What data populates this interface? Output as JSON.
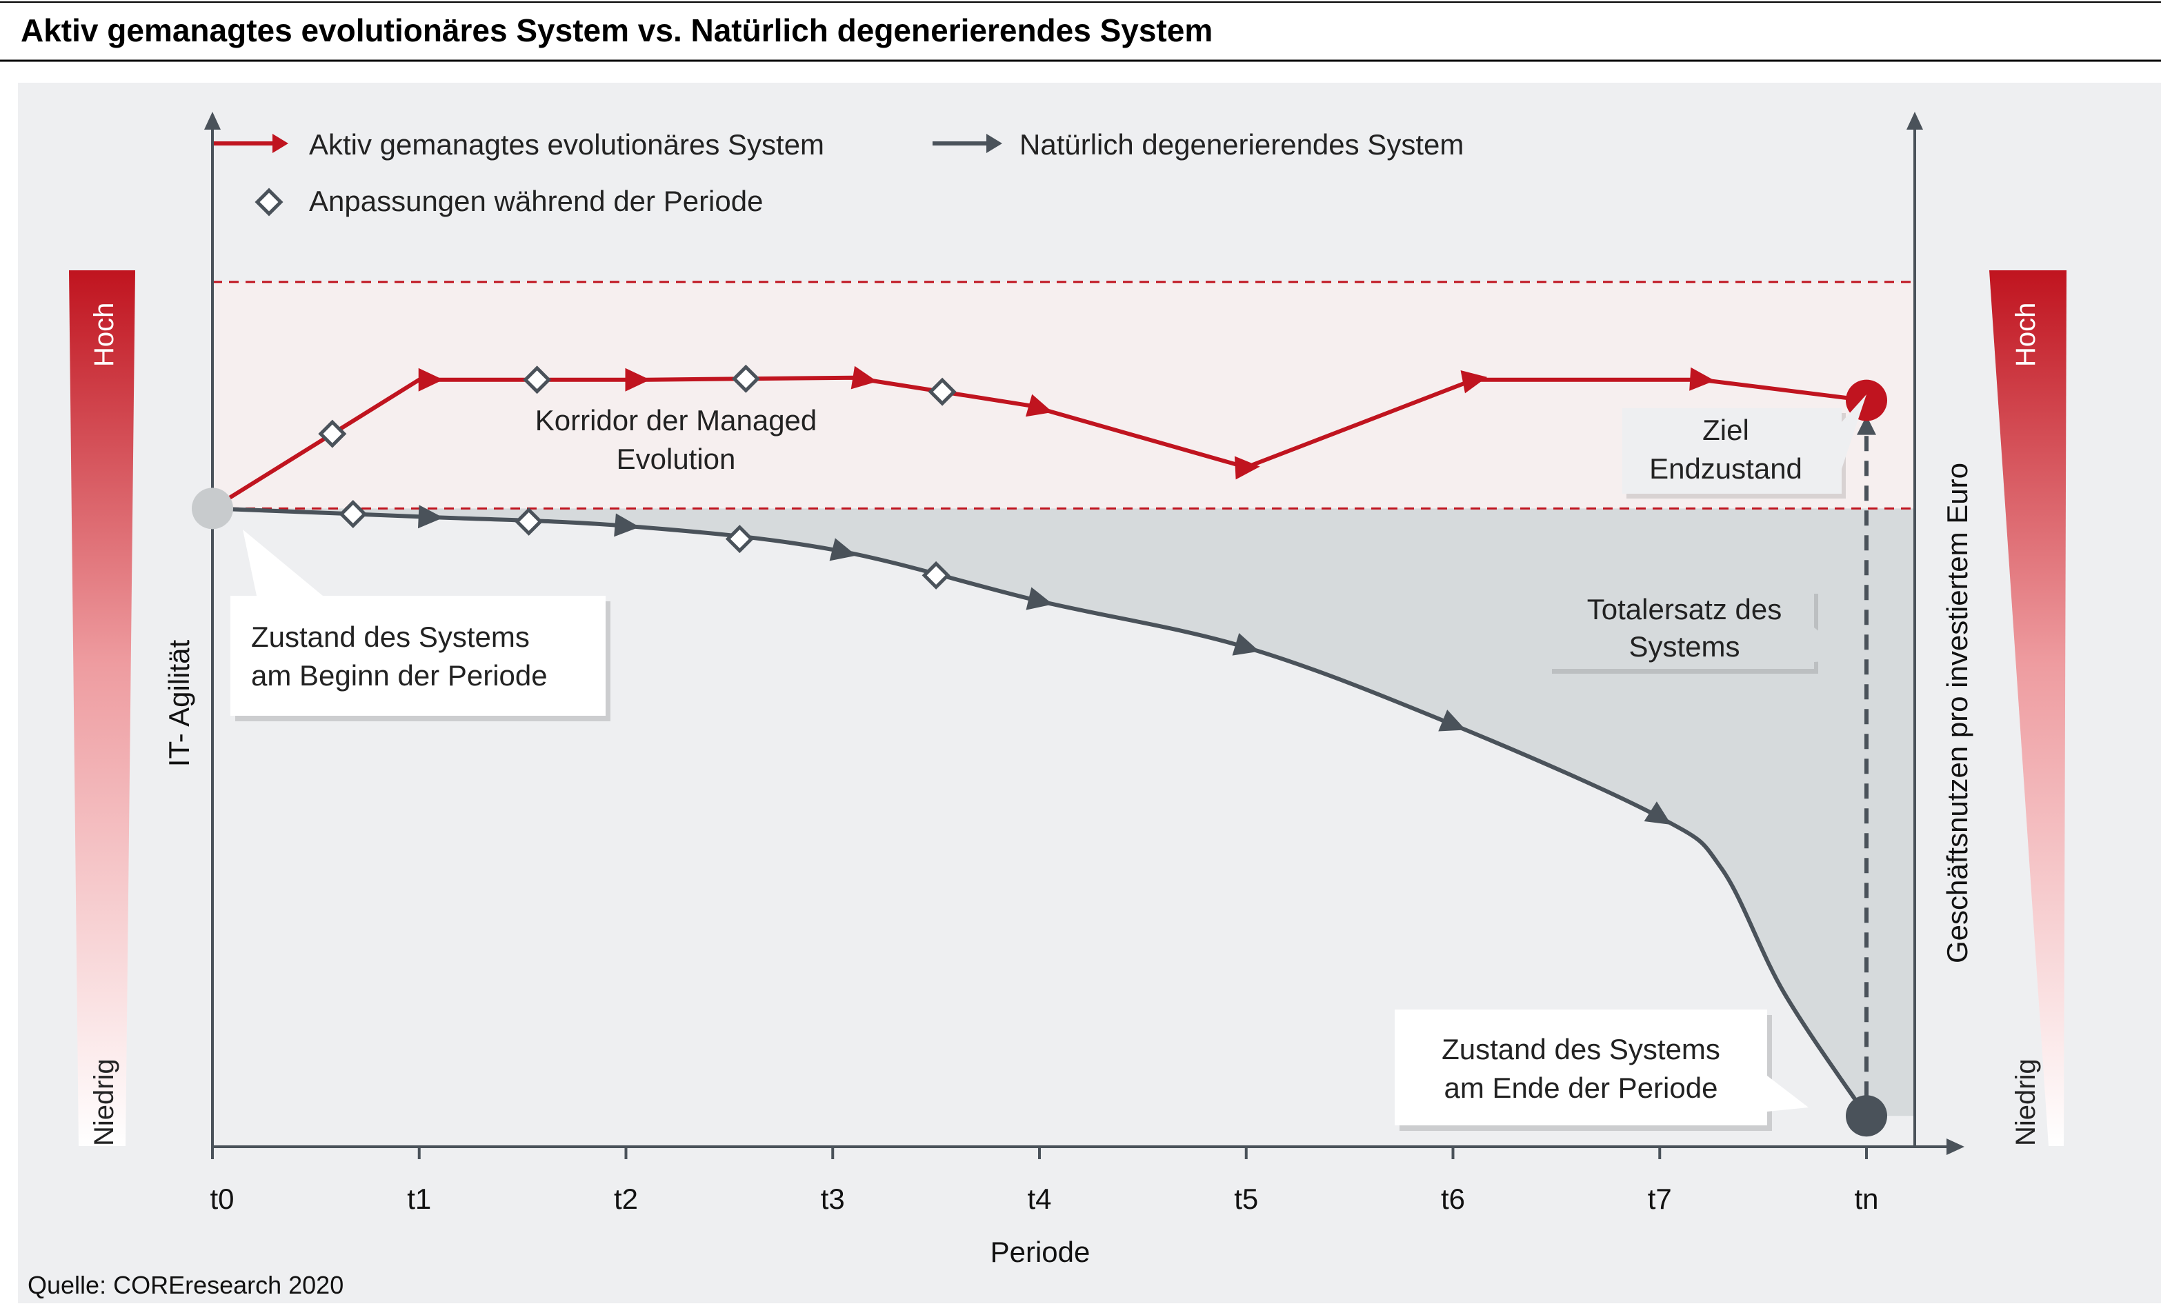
{
  "header": {
    "title": "Aktiv gemanagtes evolutionäres System vs. Natürlich degenerierendes System"
  },
  "source": "Quelle: COREresearch 2020",
  "legend": {
    "managed": "Aktiv gemanagtes evolutionäres System",
    "degenerating": "Natürlich degenerierendes System",
    "adjustments": "Anpassungen während der Periode"
  },
  "annotations": {
    "corridor_line1": "Korridor der Managed",
    "corridor_line2": "Evolution",
    "target_line1": "Ziel",
    "target_line2": "Endzustand",
    "start_line1": "Zustand des Systems",
    "start_line2": "am Beginn der Periode",
    "end_line1": "Zustand des Systems",
    "end_line2": "am Ende der Periode",
    "replace_line1": "Totalersatz des",
    "replace_line2": "Systems"
  },
  "scales": {
    "left": {
      "high": "Hoch",
      "low": "Niedrig"
    },
    "right": {
      "high": "Hoch",
      "low": "Niedrig"
    }
  },
  "colors": {
    "managed": "#c0141f",
    "degenerating": "#4a525a",
    "panel": "#eeeff1",
    "corridor": "#f6efef",
    "gap": "#d6dadc"
  },
  "chart_data": {
    "type": "line",
    "title": "Aktiv gemanagtes evolutionäres System vs. Natürlich degenerierendes System",
    "xlabel": "Periode",
    "ylabel": "IT- Agilität",
    "y2label": "Geschäftsnutzen pro investiertem Euro",
    "categories": [
      "t0",
      "t1",
      "t2",
      "t3",
      "t4",
      "t5",
      "t6",
      "t7",
      "tn"
    ],
    "xlim": [
      0,
      8
    ],
    "ylim": [
      0,
      10
    ],
    "corridor": [
      6.2,
      8.4
    ],
    "series": [
      {
        "name": "Aktiv gemanagtes evolutionäres System",
        "points": [
          [
            0,
            6.2
          ],
          [
            1.0,
            7.45
          ],
          [
            2.1,
            7.45
          ],
          [
            3.1,
            7.47
          ],
          [
            3.95,
            7.2
          ],
          [
            5.0,
            6.6
          ],
          [
            6.1,
            7.45
          ],
          [
            7.2,
            7.45
          ],
          [
            8,
            7.25
          ]
        ],
        "arrows": [
          [
            1.05,
            7.45
          ],
          [
            2.05,
            7.45
          ],
          [
            3.15,
            7.46
          ],
          [
            4.0,
            7.2
          ],
          [
            5.0,
            6.6
          ],
          [
            6.1,
            7.45
          ],
          [
            7.2,
            7.45
          ]
        ],
        "adjustments": [
          [
            0.58,
            6.78
          ],
          [
            1.57,
            7.45
          ],
          [
            2.58,
            7.46
          ],
          [
            3.53,
            7.36
          ]
        ]
      },
      {
        "name": "Natürlich degenerierendes System",
        "points": [
          [
            0,
            6.2
          ],
          [
            1.0,
            6.12
          ],
          [
            2.0,
            6.03
          ],
          [
            3.0,
            5.8
          ],
          [
            4.0,
            5.3
          ],
          [
            5.0,
            4.85
          ],
          [
            6.0,
            4.1
          ],
          [
            7.0,
            3.2
          ],
          [
            7.3,
            2.7
          ],
          [
            7.6,
            1.5
          ],
          [
            8,
            0.3
          ]
        ],
        "arrows": [
          [
            1.05,
            6.12
          ],
          [
            2.0,
            6.03
          ],
          [
            3.05,
            5.78
          ],
          [
            4.0,
            5.3
          ],
          [
            5.0,
            4.85
          ],
          [
            6.0,
            4.1
          ],
          [
            7.0,
            3.2
          ]
        ],
        "adjustments": [
          [
            0.68,
            6.15
          ],
          [
            1.53,
            6.08
          ],
          [
            2.55,
            5.98
          ],
          [
            3.5,
            5.49
          ]
        ]
      }
    ],
    "markers": {
      "start": [
        0,
        6.2
      ],
      "end": [
        8,
        0.3
      ],
      "target": [
        8,
        7.25
      ]
    },
    "replacement_arrow": {
      "from": [
        8,
        0.3
      ],
      "to": [
        8,
        7.25
      ]
    }
  }
}
